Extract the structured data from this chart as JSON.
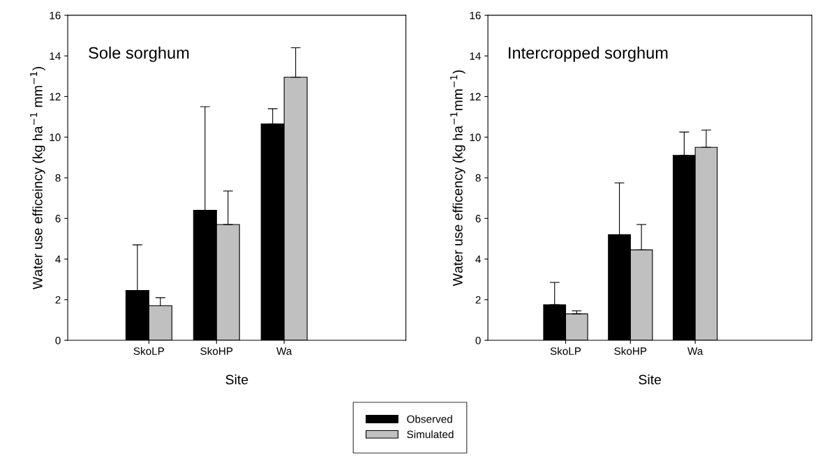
{
  "chart_data": [
    {
      "type": "bar",
      "xlabel": "Site",
      "ylabel": "Water use efficeincy (kg ha$^{−1}$ mm$^{−1}$)",
      "annotations": [
        "Sole sorghum"
      ],
      "categories": [
        "SkoLP",
        "SkoHP",
        "Wa"
      ],
      "ylim": [
        0,
        16
      ],
      "yticks": [
        0,
        2,
        4,
        6,
        8,
        10,
        12,
        14,
        16
      ],
      "legend": "bottom",
      "series": [
        {
          "name": "Observed",
          "color": "#000000",
          "values": [
            2.45,
            6.4,
            10.65
          ],
          "errors": [
            [
              2.45,
              4.7
            ],
            [
              6.4,
              11.5
            ],
            [
              10.65,
              11.4
            ]
          ]
        },
        {
          "name": "Simulated",
          "color": "#c0c0c0",
          "values": [
            1.7,
            5.7,
            12.95
          ],
          "errors": [
            [
              1.7,
              2.1
            ],
            [
              5.7,
              7.35
            ],
            [
              12.95,
              14.4
            ]
          ]
        }
      ]
    },
    {
      "type": "bar",
      "xlabel": "Site",
      "ylabel": "Water use efficency (kg ha$^{−1}$mm$^{−1}$)",
      "annotations": [
        "Intercropped sorghum"
      ],
      "categories": [
        "SkoLP",
        "SkoHP",
        "Wa"
      ],
      "ylim": [
        0,
        16
      ],
      "yticks": [
        0,
        2,
        4,
        6,
        8,
        10,
        12,
        14,
        16
      ],
      "series": [
        {
          "color": "#000000",
          "values": [
            1.75,
            5.2,
            9.1
          ],
          "errors": [
            [
              1.75,
              2.85
            ],
            [
              5.2,
              7.75
            ],
            [
              9.1,
              10.25
            ]
          ]
        },
        {
          "color": "#c0c0c0",
          "values": [
            1.3,
            4.45,
            9.5
          ],
          "errors": [
            [
              1.3,
              1.45
            ],
            [
              4.45,
              5.7
            ],
            [
              9.5,
              10.35
            ]
          ]
        }
      ]
    }
  ]
}
